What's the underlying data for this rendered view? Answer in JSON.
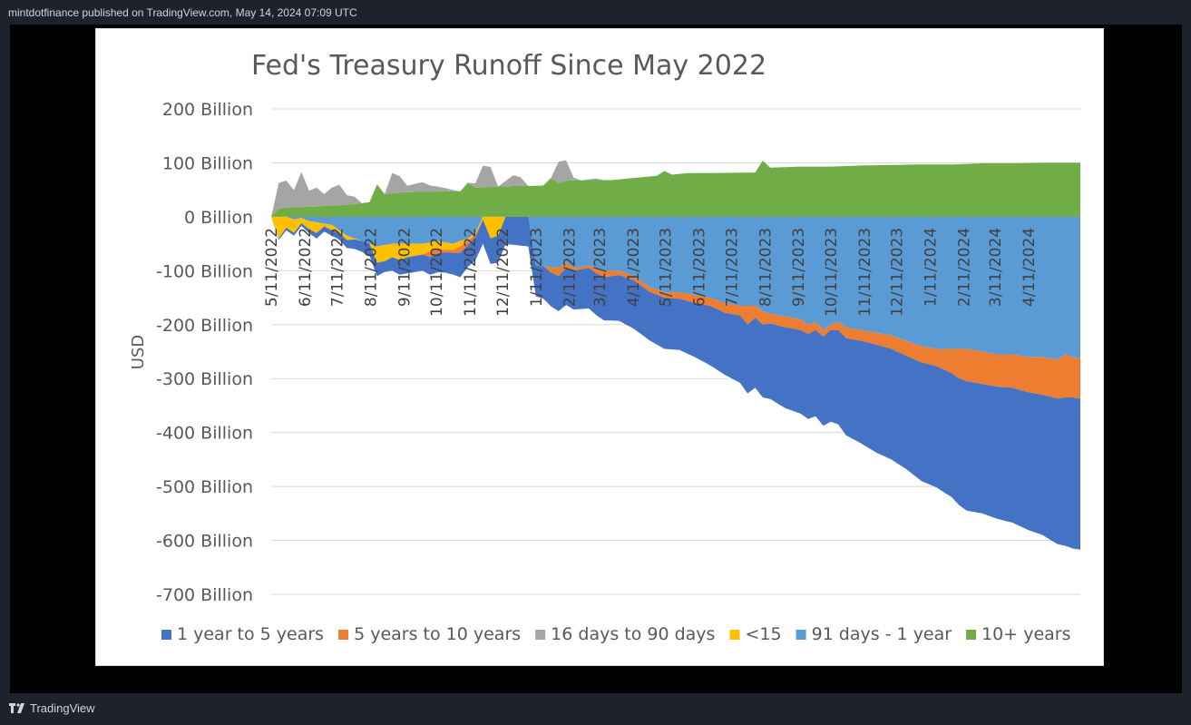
{
  "header": {
    "caption": "mintdotfinance published on TradingView.com, May 14, 2024 07:09 UTC"
  },
  "footer": {
    "brand": "TradingView"
  },
  "colors": {
    "page_bg": "#1e222d",
    "frame_bg": "#000000",
    "card_bg": "#ffffff"
  },
  "chart_data": {
    "type": "area",
    "title": "Fed's Treasury Runoff Since May 2022",
    "ylabel": "USD",
    "xlabel": "",
    "ylim": [
      -700,
      200
    ],
    "y_ticks": [
      200,
      100,
      0,
      -100,
      -200,
      -300,
      -400,
      -500,
      -600,
      -700
    ],
    "y_tick_labels": [
      "200 Billion",
      "100 Billion",
      "0 Billion",
      "-100 Billion",
      "-200 Billion",
      "-300 Billion",
      "-400 Billion",
      "-500 Billion",
      "-600 Billion",
      "-700 Billion"
    ],
    "x_tick_labels": [
      "5/11/2022",
      "6/11/2022",
      "7/11/2022",
      "8/11/2022",
      "9/11/2022",
      "10/11/2022",
      "11/11/2022",
      "12/11/2022",
      "1/11/2023",
      "2/11/2023",
      "3/11/2023",
      "4/11/2023",
      "5/11/2023",
      "6/11/2023",
      "7/11/2023",
      "8/11/2023",
      "9/11/2023",
      "10/11/2023",
      "11/11/2023",
      "12/11/2023",
      "1/11/2024",
      "2/11/2024",
      "3/11/2024",
      "4/11/2024"
    ],
    "x_tick_positions": [
      0,
      4.43,
      8.71,
      13.14,
      17.57,
      21.86,
      26.29,
      30.57,
      35,
      39.43,
      43.43,
      47.86,
      52.14,
      56.57,
      60.86,
      65.29,
      69.71,
      74,
      78.43,
      82.71,
      87.14,
      91.57,
      95.71,
      100.14
    ],
    "x_range": [
      0,
      107
    ],
    "gridlines": true,
    "legend_position": "bottom",
    "series": [
      {
        "name": "10+ years",
        "color": "#70ad47",
        "stack": "positive",
        "values": [
          [
            0,
            0
          ],
          [
            1,
            15
          ],
          [
            2,
            17
          ],
          [
            4,
            18
          ],
          [
            6,
            19
          ],
          [
            8,
            21
          ],
          [
            10,
            22
          ],
          [
            12,
            25
          ],
          [
            13,
            27
          ],
          [
            14,
            60
          ],
          [
            15,
            42
          ],
          [
            16,
            43
          ],
          [
            17,
            45
          ],
          [
            19,
            46
          ],
          [
            21,
            46
          ],
          [
            22,
            47
          ],
          [
            25,
            47
          ],
          [
            26,
            63
          ],
          [
            27,
            54
          ],
          [
            30,
            56
          ],
          [
            32,
            57
          ],
          [
            34,
            57
          ],
          [
            36,
            58
          ],
          [
            37,
            72
          ],
          [
            38,
            62
          ],
          [
            39,
            67
          ],
          [
            42,
            68
          ],
          [
            45,
            68
          ],
          [
            48,
            72
          ],
          [
            51,
            76
          ],
          [
            52,
            85
          ],
          [
            53,
            78
          ],
          [
            55,
            81
          ],
          [
            58,
            81
          ],
          [
            64,
            82
          ],
          [
            65,
            104
          ],
          [
            66,
            91
          ],
          [
            68,
            92
          ],
          [
            70,
            93
          ],
          [
            74,
            93
          ],
          [
            78,
            95
          ],
          [
            82,
            96
          ],
          [
            86,
            97
          ],
          [
            90,
            97
          ],
          [
            94,
            99
          ],
          [
            98,
            99
          ],
          [
            102,
            100
          ],
          [
            107,
            100
          ]
        ]
      },
      {
        "name": "16 days to 90 days",
        "color": "#a5a5a5",
        "stack": "positive",
        "values": [
          [
            0,
            0
          ],
          [
            1,
            48
          ],
          [
            2,
            50
          ],
          [
            3,
            32
          ],
          [
            4,
            65
          ],
          [
            5,
            30
          ],
          [
            6,
            35
          ],
          [
            7,
            22
          ],
          [
            8,
            33
          ],
          [
            9,
            38
          ],
          [
            10,
            18
          ],
          [
            11,
            14
          ],
          [
            12,
            0
          ],
          [
            15,
            0
          ],
          [
            16,
            38
          ],
          [
            17,
            30
          ],
          [
            18,
            12
          ],
          [
            20,
            18
          ],
          [
            21,
            12
          ],
          [
            25,
            0
          ],
          [
            26,
            0
          ],
          [
            27,
            8
          ],
          [
            28,
            40
          ],
          [
            29,
            37
          ],
          [
            30,
            0
          ],
          [
            32,
            20
          ],
          [
            33,
            16
          ],
          [
            34,
            0
          ],
          [
            37,
            0
          ],
          [
            38,
            40
          ],
          [
            39,
            38
          ],
          [
            40,
            5
          ],
          [
            41,
            0
          ],
          [
            43,
            3
          ],
          [
            44,
            0
          ],
          [
            107,
            0
          ]
        ]
      },
      {
        "name": "91 days - 1 year",
        "color": "#5b9bd5",
        "stack": "negative",
        "values": [
          [
            0,
            0
          ],
          [
            2,
            0
          ],
          [
            3,
            -5
          ],
          [
            4,
            -2
          ],
          [
            5,
            -8
          ],
          [
            8,
            -15
          ],
          [
            9,
            -25
          ],
          [
            10,
            -35
          ],
          [
            12,
            -45
          ],
          [
            14,
            -55
          ],
          [
            16,
            -50
          ],
          [
            18,
            -50
          ],
          [
            20,
            -50
          ],
          [
            22,
            -45
          ],
          [
            24,
            -50
          ],
          [
            26,
            -40
          ],
          [
            27,
            -30
          ],
          [
            28,
            0
          ],
          [
            30,
            0
          ],
          [
            34,
            0
          ],
          [
            35,
            -90
          ],
          [
            36,
            -92
          ],
          [
            38,
            -95
          ],
          [
            39,
            -85
          ],
          [
            40,
            -95
          ],
          [
            42,
            -90
          ],
          [
            44,
            -100
          ],
          [
            46,
            -100
          ],
          [
            48,
            -110
          ],
          [
            50,
            -130
          ],
          [
            52,
            -140
          ],
          [
            54,
            -140
          ],
          [
            56,
            -145
          ],
          [
            58,
            -150
          ],
          [
            60,
            -160
          ],
          [
            62,
            -165
          ],
          [
            64,
            -165
          ],
          [
            65,
            -175
          ],
          [
            66,
            -180
          ],
          [
            68,
            -185
          ],
          [
            70,
            -190
          ],
          [
            71,
            -200
          ],
          [
            72,
            -195
          ],
          [
            73,
            -210
          ],
          [
            74,
            -200
          ],
          [
            75,
            -195
          ],
          [
            76,
            -205
          ],
          [
            78,
            -210
          ],
          [
            80,
            -215
          ],
          [
            82,
            -220
          ],
          [
            84,
            -230
          ],
          [
            86,
            -240
          ],
          [
            88,
            -245
          ],
          [
            90,
            -245
          ],
          [
            92,
            -245
          ],
          [
            94,
            -250
          ],
          [
            96,
            -255
          ],
          [
            98,
            -255
          ],
          [
            100,
            -260
          ],
          [
            102,
            -260
          ],
          [
            104,
            -265
          ],
          [
            105,
            -255
          ],
          [
            106,
            -260
          ],
          [
            107,
            -262
          ]
        ]
      },
      {
        "name": "<15",
        "color": "#ffc000",
        "stack": "negative",
        "values": [
          [
            0,
            0
          ],
          [
            1,
            -40
          ],
          [
            2,
            -20
          ],
          [
            3,
            -25
          ],
          [
            4,
            -10
          ],
          [
            5,
            -15
          ],
          [
            6,
            -20
          ],
          [
            7,
            -5
          ],
          [
            8,
            -10
          ],
          [
            9,
            -5
          ],
          [
            10,
            -8
          ],
          [
            11,
            -2
          ],
          [
            12,
            0
          ],
          [
            13,
            0
          ],
          [
            14,
            -30
          ],
          [
            15,
            -30
          ],
          [
            16,
            -25
          ],
          [
            17,
            -30
          ],
          [
            18,
            -25
          ],
          [
            20,
            -20
          ],
          [
            22,
            -15
          ],
          [
            24,
            -12
          ],
          [
            25,
            -10
          ],
          [
            26,
            -5
          ],
          [
            27,
            -3
          ],
          [
            28,
            -5
          ],
          [
            29,
            -40
          ],
          [
            30,
            -35
          ],
          [
            31,
            0
          ],
          [
            107,
            0
          ]
        ]
      },
      {
        "name": "5 years to 10 years",
        "color": "#ed7d31",
        "stack": "negative",
        "values": [
          [
            0,
            0
          ],
          [
            20,
            0
          ],
          [
            21,
            -10
          ],
          [
            22,
            -8
          ],
          [
            23,
            -5
          ],
          [
            24,
            -5
          ],
          [
            25,
            -12
          ],
          [
            26,
            -8
          ],
          [
            27,
            -5
          ],
          [
            28,
            0
          ],
          [
            30,
            0
          ],
          [
            36,
            0
          ],
          [
            37,
            -10
          ],
          [
            38,
            -15
          ],
          [
            39,
            -10
          ],
          [
            40,
            -5
          ],
          [
            42,
            -5
          ],
          [
            43,
            -10
          ],
          [
            44,
            -12
          ],
          [
            46,
            -8
          ],
          [
            48,
            -8
          ],
          [
            52,
            -10
          ],
          [
            54,
            -12
          ],
          [
            56,
            -15
          ],
          [
            58,
            -15
          ],
          [
            60,
            -18
          ],
          [
            62,
            -18
          ],
          [
            63,
            -35
          ],
          [
            64,
            -22
          ],
          [
            65,
            -25
          ],
          [
            66,
            -18
          ],
          [
            68,
            -20
          ],
          [
            70,
            -20
          ],
          [
            72,
            -15
          ],
          [
            74,
            -10
          ],
          [
            75,
            -15
          ],
          [
            76,
            -20
          ],
          [
            78,
            -20
          ],
          [
            80,
            -22
          ],
          [
            82,
            -25
          ],
          [
            84,
            -28
          ],
          [
            86,
            -30
          ],
          [
            88,
            -32
          ],
          [
            90,
            -45
          ],
          [
            91,
            -55
          ],
          [
            92,
            -60
          ],
          [
            94,
            -60
          ],
          [
            96,
            -60
          ],
          [
            98,
            -62
          ],
          [
            100,
            -65
          ],
          [
            102,
            -70
          ],
          [
            104,
            -72
          ],
          [
            105,
            -80
          ],
          [
            106,
            -75
          ],
          [
            107,
            -75
          ]
        ]
      },
      {
        "name": "1 year to 5 years",
        "color": "#4472c4",
        "stack": "negative",
        "values": [
          [
            0,
            0
          ],
          [
            2,
            -5
          ],
          [
            4,
            -5
          ],
          [
            6,
            -10
          ],
          [
            8,
            -10
          ],
          [
            10,
            -15
          ],
          [
            12,
            -20
          ],
          [
            14,
            -25
          ],
          [
            15,
            -20
          ],
          [
            16,
            -25
          ],
          [
            18,
            -30
          ],
          [
            20,
            -30
          ],
          [
            22,
            -35
          ],
          [
            24,
            -40
          ],
          [
            25,
            -45
          ],
          [
            26,
            -40
          ],
          [
            28,
            -45
          ],
          [
            30,
            -50
          ],
          [
            32,
            -52
          ],
          [
            34,
            -55
          ],
          [
            36,
            -60
          ],
          [
            38,
            -65
          ],
          [
            40,
            -72
          ],
          [
            42,
            -75
          ],
          [
            44,
            -80
          ],
          [
            46,
            -85
          ],
          [
            48,
            -90
          ],
          [
            50,
            -90
          ],
          [
            52,
            -95
          ],
          [
            54,
            -95
          ],
          [
            56,
            -100
          ],
          [
            58,
            -110
          ],
          [
            60,
            -115
          ],
          [
            62,
            -125
          ],
          [
            64,
            -130
          ],
          [
            66,
            -140
          ],
          [
            68,
            -150
          ],
          [
            70,
            -155
          ],
          [
            72,
            -160
          ],
          [
            74,
            -170
          ],
          [
            76,
            -180
          ],
          [
            78,
            -190
          ],
          [
            80,
            -200
          ],
          [
            82,
            -205
          ],
          [
            84,
            -210
          ],
          [
            86,
            -220
          ],
          [
            88,
            -225
          ],
          [
            90,
            -230
          ],
          [
            92,
            -240
          ],
          [
            94,
            -240
          ],
          [
            96,
            -245
          ],
          [
            98,
            -250
          ],
          [
            100,
            -255
          ],
          [
            102,
            -260
          ],
          [
            104,
            -270
          ],
          [
            105,
            -275
          ],
          [
            106,
            -280
          ],
          [
            107,
            -280
          ]
        ]
      }
    ],
    "legend_order": [
      "1 year to 5 years",
      "5 years to 10 years",
      "16 days to 90 days",
      "<15",
      "91 days - 1 year",
      "10+ years"
    ]
  }
}
